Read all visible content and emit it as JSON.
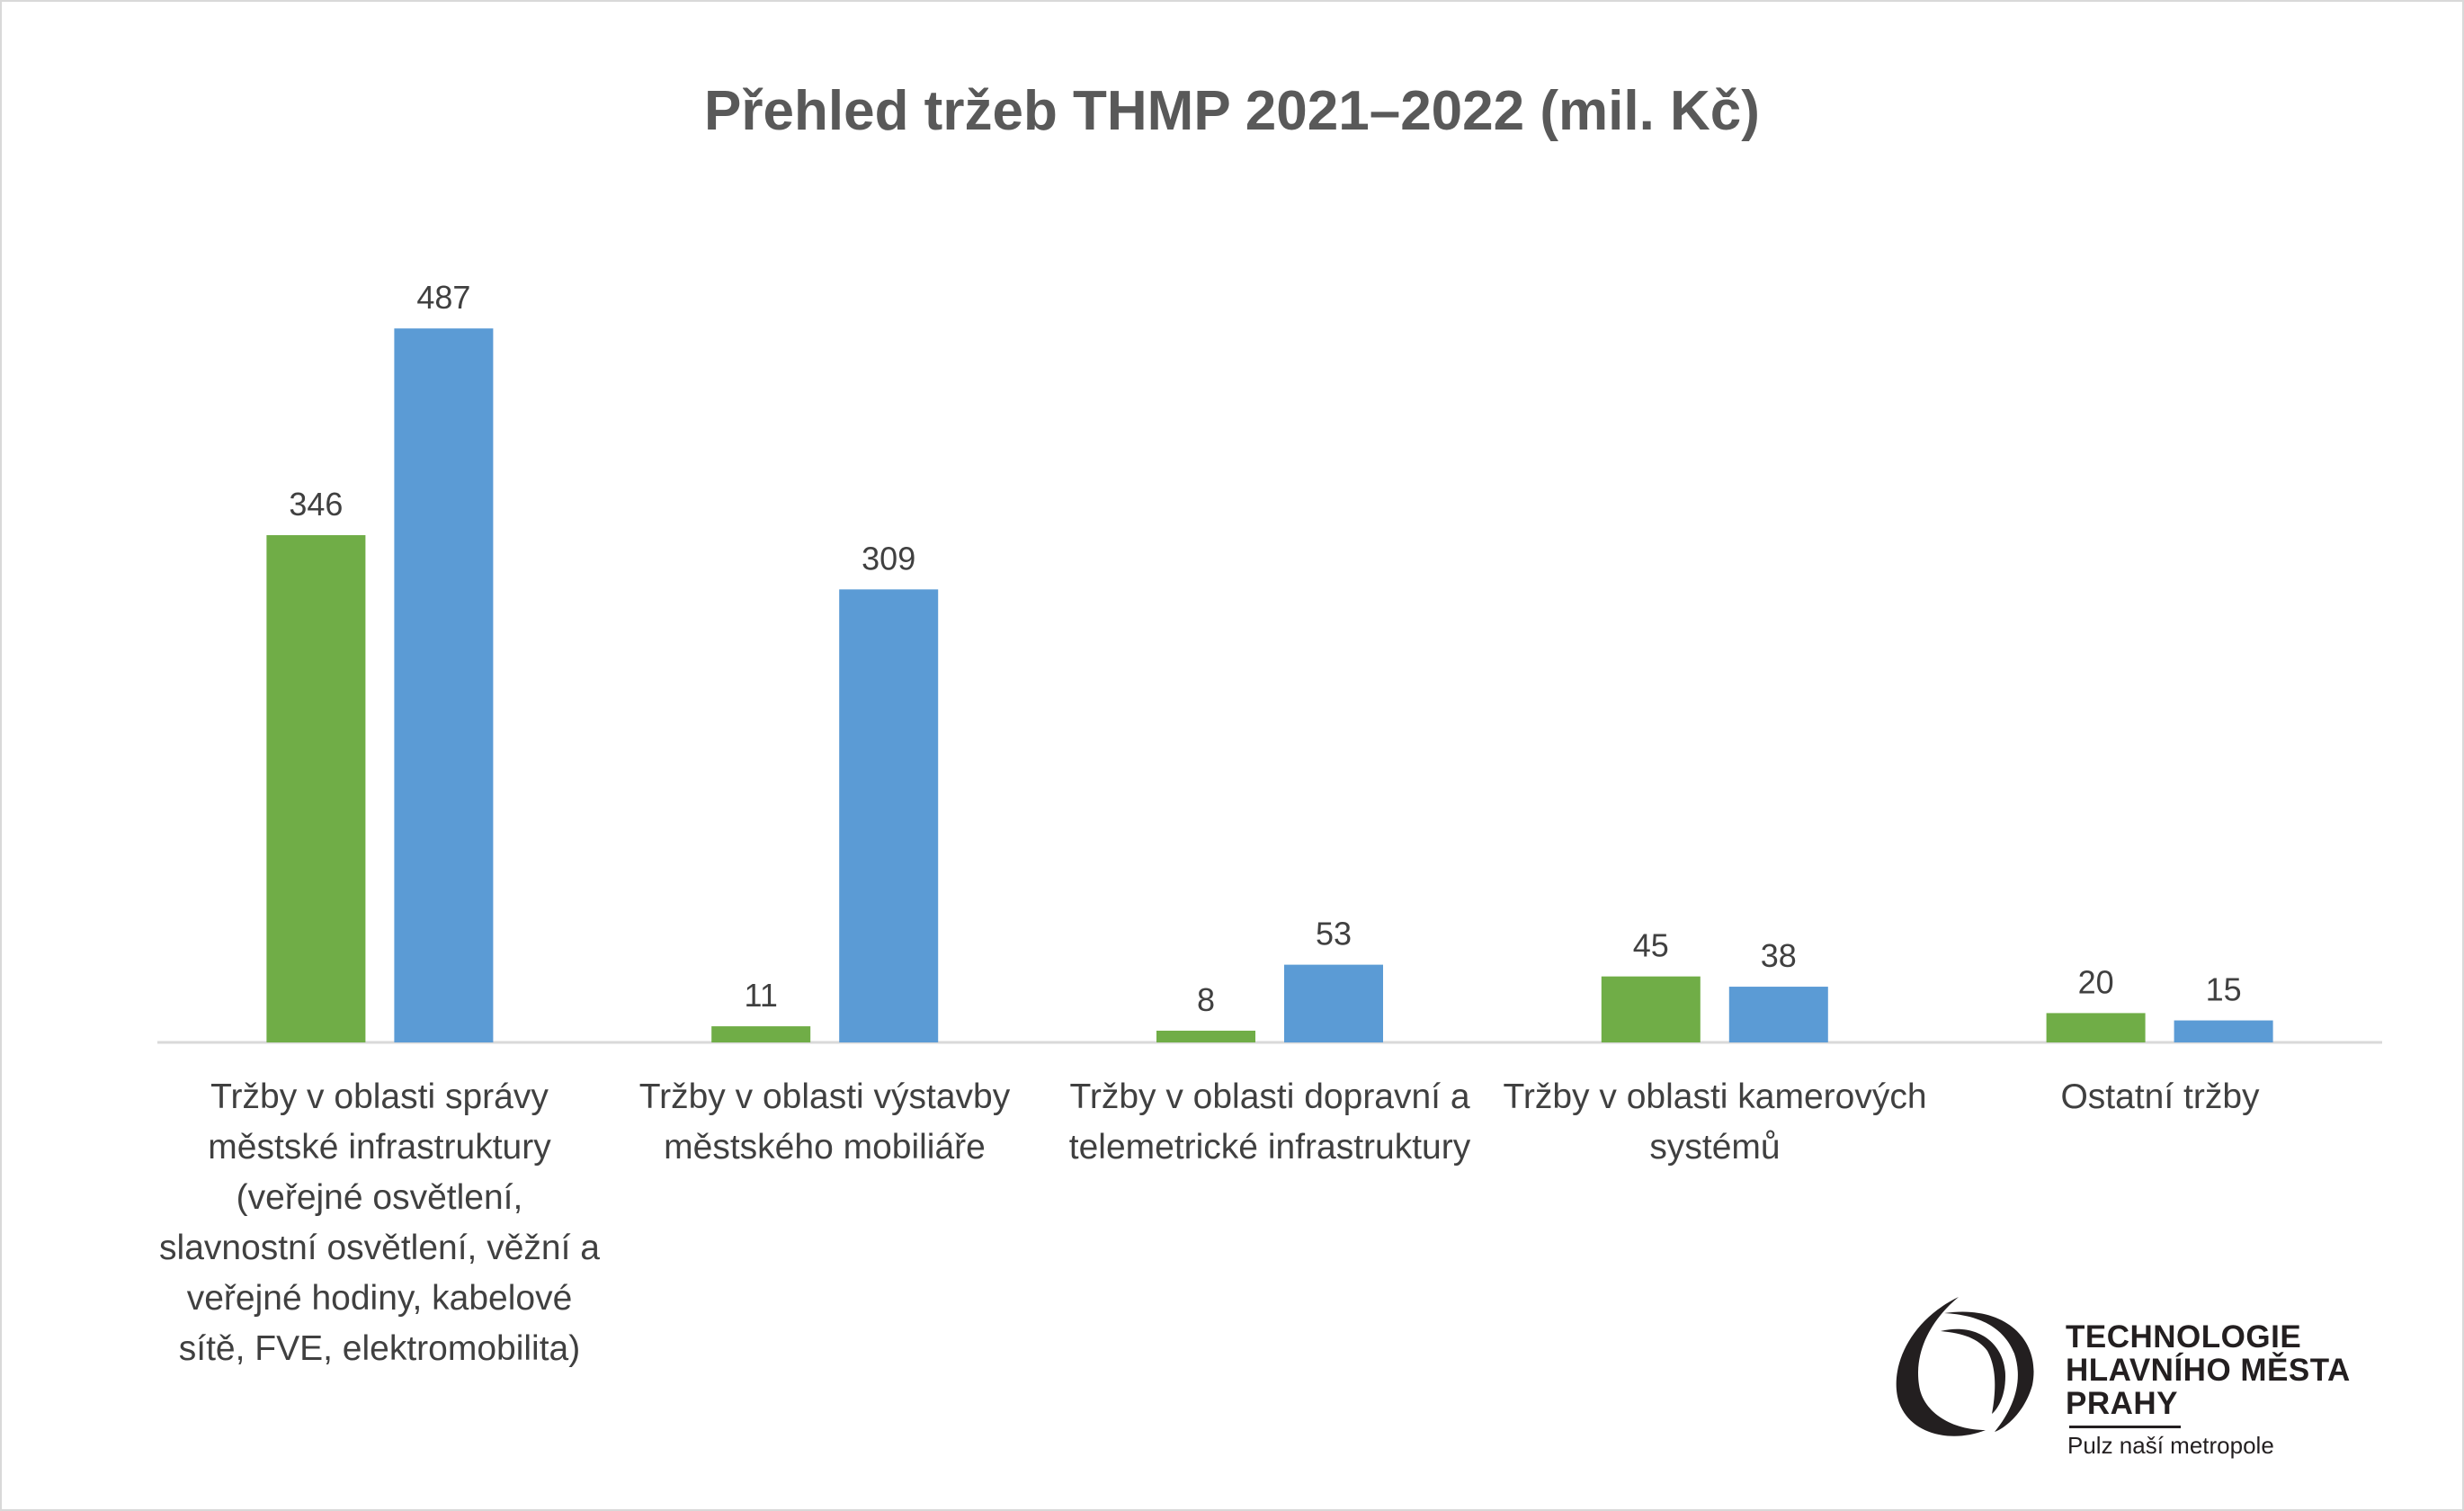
{
  "chart_data": {
    "type": "bar",
    "title": "Přehled tržeb THMP 2021–2022 (mil. Kč)",
    "categories": [
      "Tržby v oblasti správy městské infrastruktury (veřejné osvětlení, slavnostní osvětlení, věžní a veřejné hodiny, kabelové sítě, FVE, elektromobilita)",
      "Tržby v oblasti výstavby městského mobiliáře",
      "Tržby v oblasti dopravní a telemetrické infrastruktury",
      "Tržby v oblasti kamerových systémů",
      "Ostatní tržby"
    ],
    "series": [
      {
        "values": [
          346,
          11,
          8,
          45,
          20
        ],
        "color": "#70AD47"
      },
      {
        "values": [
          487,
          309,
          53,
          38,
          15
        ],
        "color": "#5B9BD5"
      }
    ],
    "xlabel": "",
    "ylabel": "",
    "ylim": [
      0,
      600
    ],
    "grid": false,
    "legend": "none",
    "data_labels": true
  },
  "logo": {
    "lines": [
      "TECHNOLOGIE",
      "HLAVNÍHO MĚSTA",
      "PRAHY"
    ],
    "tagline": "Pulz naší metropole"
  }
}
